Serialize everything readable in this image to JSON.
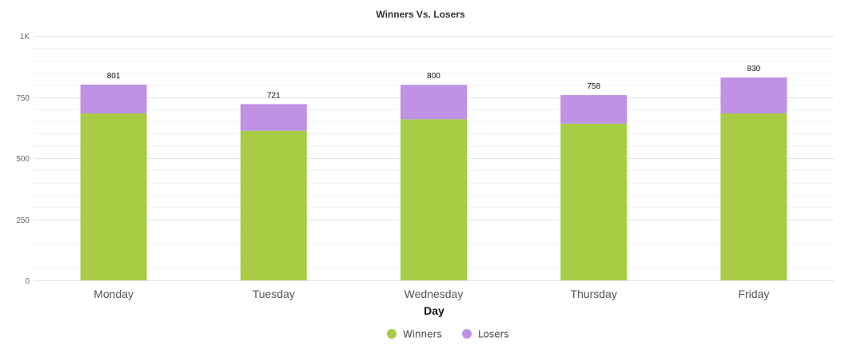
{
  "chart_data": {
    "type": "bar",
    "stacked": true,
    "title": "Winners Vs. Losers",
    "xlabel": "Day",
    "ylabel": "",
    "ylim": [
      0,
      1000
    ],
    "yticks": [
      0,
      250,
      500,
      750,
      1000
    ],
    "ytick_labels": [
      "0",
      "250",
      "500",
      "750",
      "1K"
    ],
    "grid": true,
    "legend_position": "bottom-center",
    "categories": [
      "Monday",
      "Tuesday",
      "Wednesday",
      "Thursday",
      "Friday"
    ],
    "series": [
      {
        "name": "Winners",
        "color": "#a8cc44",
        "values": [
          683,
          612,
          659,
          641,
          683
        ]
      },
      {
        "name": "Losers",
        "color": "#bf92e4",
        "values": [
          118,
          109,
          141,
          117,
          147
        ]
      }
    ],
    "totals": [
      801,
      721,
      800,
      758,
      830
    ]
  }
}
